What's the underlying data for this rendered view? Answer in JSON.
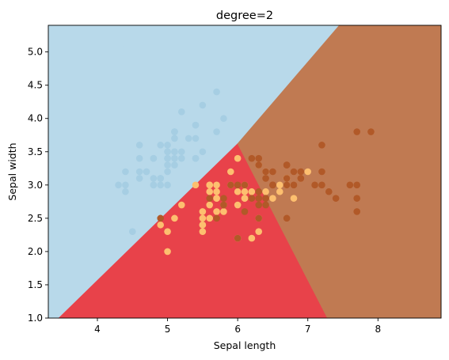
{
  "chart_data": {
    "type": "scatter",
    "title": "degree=2",
    "xlabel": "Sepal length",
    "ylabel": "Sepal width",
    "xlim": [
      3.3,
      8.9
    ],
    "ylim": [
      1.0,
      5.4
    ],
    "xticks": [
      4,
      5,
      6,
      7,
      8
    ],
    "yticks": [
      1.0,
      1.5,
      2.0,
      2.5,
      3.0,
      3.5,
      4.0,
      4.5,
      5.0
    ],
    "xtick_labels": [
      "4",
      "5",
      "6",
      "7",
      "8"
    ],
    "ytick_labels": [
      "1.0",
      "1.5",
      "2.0",
      "2.5",
      "3.0",
      "3.5",
      "4.0",
      "4.5",
      "5.0"
    ],
    "grid": false,
    "legend": "none",
    "regions": [
      {
        "name": "class 0",
        "color": "#b8d9ea",
        "polygon": [
          [
            3.3,
            1.0
          ],
          [
            3.3,
            5.4
          ],
          [
            4.45,
            5.4
          ],
          [
            3.45,
            1.0
          ]
        ]
      },
      {
        "name": "class 0 upper",
        "color": "#b8d9ea",
        "polygon": [
          [
            3.45,
            1.0
          ],
          [
            4.45,
            5.4
          ],
          [
            7.45,
            5.4
          ],
          [
            6.0,
            3.62
          ]
        ]
      },
      {
        "name": "class 1",
        "color": "#e8424a",
        "polygon": [
          [
            3.45,
            1.0
          ],
          [
            6.0,
            3.62
          ],
          [
            7.28,
            1.0
          ]
        ]
      },
      {
        "name": "class 2",
        "color": "#c07a52",
        "polygon": [
          [
            6.0,
            3.62
          ],
          [
            7.45,
            5.4
          ],
          [
            8.9,
            5.4
          ],
          [
            8.9,
            1.0
          ],
          [
            7.28,
            1.0
          ]
        ]
      }
    ],
    "series": [
      {
        "color": "#a6cee3",
        "points": [
          [
            5.1,
            3.5
          ],
          [
            4.9,
            3.0
          ],
          [
            4.7,
            3.2
          ],
          [
            4.6,
            3.1
          ],
          [
            5.0,
            3.6
          ],
          [
            5.4,
            3.9
          ],
          [
            4.6,
            3.4
          ],
          [
            5.0,
            3.4
          ],
          [
            4.4,
            2.9
          ],
          [
            4.9,
            3.1
          ],
          [
            5.4,
            3.7
          ],
          [
            4.8,
            3.4
          ],
          [
            4.8,
            3.0
          ],
          [
            4.3,
            3.0
          ],
          [
            5.8,
            4.0
          ],
          [
            5.7,
            4.4
          ],
          [
            5.4,
            3.9
          ],
          [
            5.1,
            3.5
          ],
          [
            5.7,
            3.8
          ],
          [
            5.1,
            3.8
          ],
          [
            5.4,
            3.4
          ],
          [
            5.1,
            3.7
          ],
          [
            4.6,
            3.6
          ],
          [
            5.1,
            3.3
          ],
          [
            4.8,
            3.4
          ],
          [
            5.0,
            3.0
          ],
          [
            5.0,
            3.4
          ],
          [
            5.2,
            3.5
          ],
          [
            5.2,
            3.4
          ],
          [
            4.7,
            3.2
          ],
          [
            4.8,
            3.1
          ],
          [
            5.4,
            3.4
          ],
          [
            5.2,
            4.1
          ],
          [
            5.5,
            4.2
          ],
          [
            4.9,
            3.1
          ],
          [
            5.0,
            3.2
          ],
          [
            5.5,
            3.5
          ],
          [
            4.9,
            3.6
          ],
          [
            4.4,
            3.0
          ],
          [
            5.1,
            3.4
          ],
          [
            5.0,
            3.5
          ],
          [
            4.5,
            2.3
          ],
          [
            4.4,
            3.2
          ],
          [
            5.0,
            3.5
          ],
          [
            5.1,
            3.8
          ],
          [
            4.8,
            3.0
          ],
          [
            5.1,
            3.8
          ],
          [
            4.6,
            3.2
          ],
          [
            5.3,
            3.7
          ],
          [
            5.0,
            3.3
          ]
        ]
      },
      {
        "color": "#fdbf6f",
        "points": [
          [
            7.0,
            3.2
          ],
          [
            6.4,
            3.2
          ],
          [
            6.9,
            3.1
          ],
          [
            5.5,
            2.3
          ],
          [
            6.5,
            2.8
          ],
          [
            5.7,
            2.8
          ],
          [
            6.3,
            3.3
          ],
          [
            4.9,
            2.4
          ],
          [
            6.6,
            2.9
          ],
          [
            5.2,
            2.7
          ],
          [
            5.0,
            2.0
          ],
          [
            5.9,
            3.0
          ],
          [
            6.0,
            2.2
          ],
          [
            6.1,
            2.9
          ],
          [
            5.6,
            2.9
          ],
          [
            6.7,
            3.1
          ],
          [
            5.6,
            3.0
          ],
          [
            5.8,
            2.7
          ],
          [
            6.2,
            2.2
          ],
          [
            5.6,
            2.5
          ],
          [
            5.9,
            3.2
          ],
          [
            6.1,
            2.8
          ],
          [
            6.3,
            2.5
          ],
          [
            6.1,
            2.8
          ],
          [
            6.4,
            2.9
          ],
          [
            6.6,
            3.0
          ],
          [
            6.8,
            2.8
          ],
          [
            6.7,
            3.0
          ],
          [
            6.0,
            2.9
          ],
          [
            5.7,
            2.6
          ],
          [
            5.5,
            2.4
          ],
          [
            5.5,
            2.4
          ],
          [
            5.8,
            2.7
          ],
          [
            6.0,
            2.7
          ],
          [
            5.4,
            3.0
          ],
          [
            6.0,
            3.4
          ],
          [
            6.7,
            3.1
          ],
          [
            6.3,
            2.3
          ],
          [
            5.6,
            3.0
          ],
          [
            5.5,
            2.5
          ],
          [
            5.5,
            2.6
          ],
          [
            6.1,
            3.0
          ],
          [
            5.8,
            2.6
          ],
          [
            5.0,
            2.3
          ],
          [
            5.6,
            2.7
          ],
          [
            5.7,
            3.0
          ],
          [
            5.7,
            2.9
          ],
          [
            6.2,
            2.9
          ],
          [
            5.1,
            2.5
          ],
          [
            5.7,
            2.8
          ]
        ]
      },
      {
        "color": "#b15928",
        "points": [
          [
            6.3,
            3.3
          ],
          [
            5.8,
            2.7
          ],
          [
            7.1,
            3.0
          ],
          [
            6.3,
            2.9
          ],
          [
            6.5,
            3.0
          ],
          [
            7.6,
            3.0
          ],
          [
            4.9,
            2.5
          ],
          [
            7.3,
            2.9
          ],
          [
            6.7,
            2.5
          ],
          [
            7.2,
            3.6
          ],
          [
            6.5,
            3.2
          ],
          [
            6.4,
            2.7
          ],
          [
            6.8,
            3.0
          ],
          [
            5.7,
            2.5
          ],
          [
            5.8,
            2.8
          ],
          [
            6.4,
            3.2
          ],
          [
            6.5,
            3.0
          ],
          [
            7.7,
            3.8
          ],
          [
            7.7,
            2.6
          ],
          [
            6.0,
            2.2
          ],
          [
            6.9,
            3.2
          ],
          [
            5.6,
            2.8
          ],
          [
            7.7,
            2.8
          ],
          [
            6.3,
            2.7
          ],
          [
            6.7,
            3.3
          ],
          [
            7.2,
            3.2
          ],
          [
            6.2,
            2.8
          ],
          [
            6.1,
            3.0
          ],
          [
            6.4,
            2.8
          ],
          [
            7.2,
            3.0
          ],
          [
            7.4,
            2.8
          ],
          [
            7.9,
            3.8
          ],
          [
            6.4,
            2.8
          ],
          [
            6.3,
            2.8
          ],
          [
            6.1,
            2.6
          ],
          [
            7.7,
            3.0
          ],
          [
            6.3,
            3.4
          ],
          [
            6.4,
            3.1
          ],
          [
            6.0,
            3.0
          ],
          [
            6.9,
            3.1
          ],
          [
            6.7,
            3.1
          ],
          [
            6.9,
            3.1
          ],
          [
            5.8,
            2.7
          ],
          [
            6.8,
            3.2
          ],
          [
            6.7,
            3.3
          ],
          [
            6.7,
            3.0
          ],
          [
            6.3,
            2.5
          ],
          [
            6.5,
            3.0
          ],
          [
            6.2,
            3.4
          ],
          [
            5.9,
            3.0
          ]
        ]
      }
    ]
  }
}
